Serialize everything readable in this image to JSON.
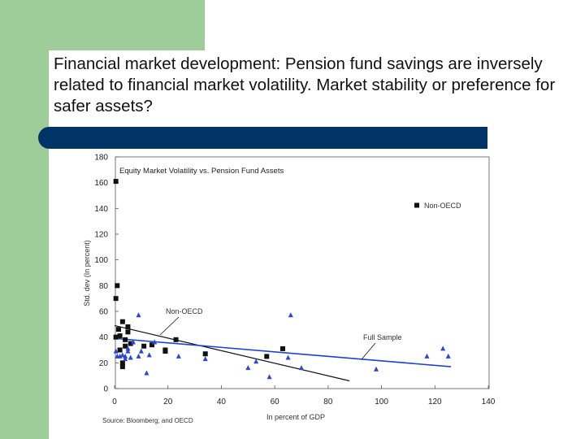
{
  "slide": {
    "title": "Financial market development: Pension fund savings are inversely related to financial market volatility. Market stability or preference for safer assets?"
  },
  "colors": {
    "green": "#9fcd99",
    "band": "#003466",
    "full_sample_line": "#1f3fd0",
    "triangle_marker": "#2b45d6",
    "square_marker": "#111111",
    "non_oecd_line": "#111111"
  },
  "chart_data": {
    "type": "scatter",
    "title": "Equity Market Volatility vs. Pension Fund Assets",
    "xlabel": "In percent of GDP",
    "ylabel": "Std. dev (In percent)",
    "source": "Source: Bloomberg; and OECD",
    "xlim": [
      0,
      140
    ],
    "ylim": [
      0,
      180
    ],
    "x_ticks": [
      "0",
      "20",
      "40",
      "60",
      "80",
      "100",
      "120",
      "140"
    ],
    "y_ticks": [
      "0",
      "20",
      "40",
      "60",
      "80",
      "100",
      "120",
      "140",
      "160",
      "180"
    ],
    "legend": {
      "position": "top-right",
      "label": "Non-OECD"
    },
    "annotations": [
      "Non-OECD",
      "Full Sample"
    ],
    "series": [
      {
        "name": "Non-OECD",
        "marker": "square",
        "points": [
          [
            0.5,
            161
          ],
          [
            1,
            80
          ],
          [
            0.5,
            70
          ],
          [
            1.5,
            46
          ],
          [
            0.5,
            40
          ],
          [
            2,
            41
          ],
          [
            2,
            30
          ],
          [
            3,
            20
          ],
          [
            3,
            17
          ],
          [
            3,
            52
          ],
          [
            4,
            33
          ],
          [
            4,
            38
          ],
          [
            5,
            48
          ],
          [
            5,
            44
          ],
          [
            6,
            35
          ],
          [
            11,
            33
          ],
          [
            14,
            34
          ],
          [
            19,
            30
          ],
          [
            19,
            29
          ],
          [
            23,
            38
          ],
          [
            34,
            27
          ],
          [
            57,
            25
          ],
          [
            63,
            31
          ]
        ]
      },
      {
        "name": "OECD",
        "marker": "triangle",
        "points": [
          [
            0.5,
            29
          ],
          [
            1,
            25
          ],
          [
            2,
            25
          ],
          [
            3,
            26
          ],
          [
            4,
            23
          ],
          [
            4,
            25
          ],
          [
            5,
            29
          ],
          [
            5,
            31
          ],
          [
            6,
            24
          ],
          [
            7,
            36
          ],
          [
            9,
            57
          ],
          [
            9,
            25
          ],
          [
            10,
            29
          ],
          [
            12,
            12
          ],
          [
            13,
            26
          ],
          [
            15,
            36
          ],
          [
            24,
            25
          ],
          [
            34,
            23
          ],
          [
            50,
            16
          ],
          [
            53,
            21
          ],
          [
            58,
            9
          ],
          [
            65,
            24
          ],
          [
            66,
            57
          ],
          [
            70,
            16
          ],
          [
            98,
            15
          ],
          [
            117,
            25
          ],
          [
            123,
            31
          ],
          [
            125,
            25
          ]
        ]
      }
    ],
    "trend_lines": [
      {
        "name": "Non-OECD",
        "from": [
          0,
          49
        ],
        "to": [
          88,
          6
        ]
      },
      {
        "name": "Full Sample",
        "from": [
          0,
          39
        ],
        "to": [
          126,
          17
        ]
      }
    ]
  }
}
